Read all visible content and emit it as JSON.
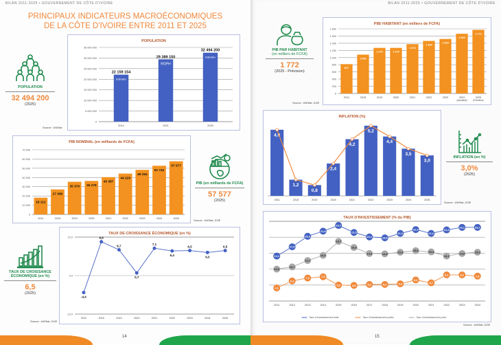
{
  "header_left": "BILAN 2011-2025 • GOUVERNEMENT DE CÔTE D'IVOIRE",
  "header_right": "BILAN 2011-2025 • GOUVERNEMENT DE CÔTE D'IVOIRE",
  "title_line1": "PRINCIPAUX INDICATEURS MACROÉCONOMIQUES",
  "title_line2": "DE LA CÔTE D'IVOIRE ENTRE 2011 ET 2025",
  "page_left": "14",
  "page_right": "15",
  "colors": {
    "orange": "#f0883a",
    "green": "#1f8a4c",
    "blue": "#4361c2",
    "gray": "#a8a8a8",
    "bar_orange": "#f39220"
  },
  "kpis": {
    "population": {
      "label": "POPULATION",
      "value": "32 494 200",
      "year": "(2025)",
      "icon": "people-group-icon"
    },
    "pib_hab": {
      "label1": "PIB PAR HABITANT",
      "label2": "(en milliers de FCFA)",
      "value": "1 772",
      "year": "(2025 - Prévision)",
      "icon": "person-money-bag-icon"
    },
    "pib": {
      "label": "PIB (en milliards de FCFA)",
      "value": "57 577",
      "year": "(2025)",
      "icon": "globe-economy-icon"
    },
    "inflation": {
      "label": "INFLATION (en %)",
      "value": "3,0%",
      "year": "(2025)",
      "icon": "line-chart-icon"
    },
    "croissance": {
      "label1": "TAUX DE CROISSANCE",
      "label2": "ÉCONOMIQUE (en %)",
      "value": "6,5",
      "year": "(2025)",
      "icon": "bar-growth-icon"
    }
  },
  "sources": {
    "population": "Source : ANStat",
    "pib_hab": "Source : ANStat, DGE",
    "pib": "Source : ANStat, DGE",
    "inflation": "Source : ANStat, DGE",
    "croissance": "Source : ANStat, DGE",
    "investissement": "Source : ANStat, DGE"
  },
  "chart_data": [
    {
      "id": "population",
      "type": "bar",
      "title": "POPULATION",
      "categories": [
        "2014",
        "2021",
        "2025"
      ],
      "values": [
        22159154,
        29389150,
        32494200
      ],
      "bar_notes": [
        "Estimation",
        "RGPH",
        "Estimation"
      ],
      "ylim": [
        0,
        35000000
      ],
      "yticks": [
        0,
        5000000,
        10000000,
        15000000,
        20000000,
        25000000,
        30000000,
        35000000
      ],
      "grid": true,
      "color": "#4361c2"
    },
    {
      "id": "pib_hab",
      "type": "bar",
      "title": "PIB/ HABITANT (en milliers de FCFA)",
      "categories": [
        "2011",
        "2015",
        "2019",
        "2020",
        "2021",
        "2022",
        "2023",
        "2024",
        "2025"
      ],
      "category_notes": [
        "",
        "",
        "",
        "",
        "",
        "",
        "",
        "(Actualisé)",
        "(Prévision)"
      ],
      "values": [
        817,
        1082,
        1270,
        1270,
        1374,
        1464,
        1518,
        1663,
        1772
      ],
      "ylim": [
        0,
        1800
      ],
      "yticks": [
        0,
        200,
        400,
        600,
        800,
        1000,
        1200,
        1400,
        1600,
        1800
      ],
      "grid": true,
      "color": "#f39220"
    },
    {
      "id": "pib",
      "type": "bar",
      "title": "PIB NOMINAL (en milliards de FCFA)",
      "categories": [
        "2011",
        "2015",
        "2019",
        "2020",
        "2021",
        "2022",
        "2023",
        "2024",
        "2025"
      ],
      "values": [
        18112,
        27086,
        35379,
        36278,
        40387,
        44229,
        48294,
        52742,
        57577
      ],
      "ylim": [
        0,
        70000
      ],
      "yticks": [
        0,
        10000,
        20000,
        30000,
        40000,
        50000,
        60000,
        70000
      ],
      "grid": true,
      "color": "#f39220"
    },
    {
      "id": "inflation",
      "type": "bar+line",
      "title": "INFLATION (%)",
      "categories": [
        "2011",
        "2015",
        "2019",
        "2020",
        "2021",
        "2022",
        "2023",
        "2024",
        "2025"
      ],
      "values": [
        4.9,
        1.2,
        0.8,
        2.4,
        4.2,
        5.2,
        4.4,
        3.5,
        3.0
      ],
      "ylim": [
        0,
        5.5
      ],
      "grid": false,
      "color": "#4361c2",
      "line_color": "#f08a3c"
    },
    {
      "id": "croissance",
      "type": "line",
      "title": "TAUX DE CROISSANCE ÉCONOMIQUE (en %)",
      "categories": [
        "2011",
        "2015",
        "2019",
        "2020",
        "2021",
        "2022",
        "2023",
        "2024",
        "2025"
      ],
      "values": [
        -4.4,
        8.8,
        6.7,
        0.7,
        7.1,
        6.4,
        6.5,
        6.0,
        6.5
      ],
      "ylim": [
        -10,
        10
      ],
      "yticks": [
        -10,
        0,
        10
      ],
      "grid": true,
      "color": "#4361c2"
    },
    {
      "id": "investissement",
      "type": "line",
      "title": "TAUX D'INVESTISSEMENT (% du PIB)",
      "categories": [
        "2011",
        "2012",
        "2013",
        "2014",
        "2015",
        "2016",
        "2017",
        "2018",
        "2019",
        "2020",
        "2021",
        "2022",
        "2023",
        "2024"
      ],
      "series": [
        {
          "name": "Taux d'investissement total",
          "color": "#4361c2",
          "values": [
            14.1,
            17.0,
            20.3,
            21.9,
            23.7,
            21.5,
            20.1,
            19.8,
            21.2,
            22.4,
            21.2,
            22.3,
            23.1,
            23.1
          ]
        },
        {
          "name": "Taux d'investissement public",
          "color": "#f08a3c",
          "values": [
            4.1,
            6.3,
            7.2,
            7.6,
            5.0,
            4.9,
            5.2,
            5.2,
            5.4,
            6.6,
            5.7,
            8.2,
            8.2,
            7.8
          ]
        },
        {
          "name": "Taux d'investissement privé",
          "color": "#a8a8a8",
          "values": [
            10.0,
            10.7,
            12.7,
            14.3,
            18.7,
            16.8,
            14.9,
            14.8,
            15.3,
            15.8,
            15.4,
            14.1,
            14.9,
            15.3
          ]
        }
      ],
      "ylim": [
        0,
        25
      ],
      "yticks": [
        0,
        5,
        10,
        15,
        20,
        25
      ],
      "grid": true,
      "legend": "bottom"
    }
  ]
}
